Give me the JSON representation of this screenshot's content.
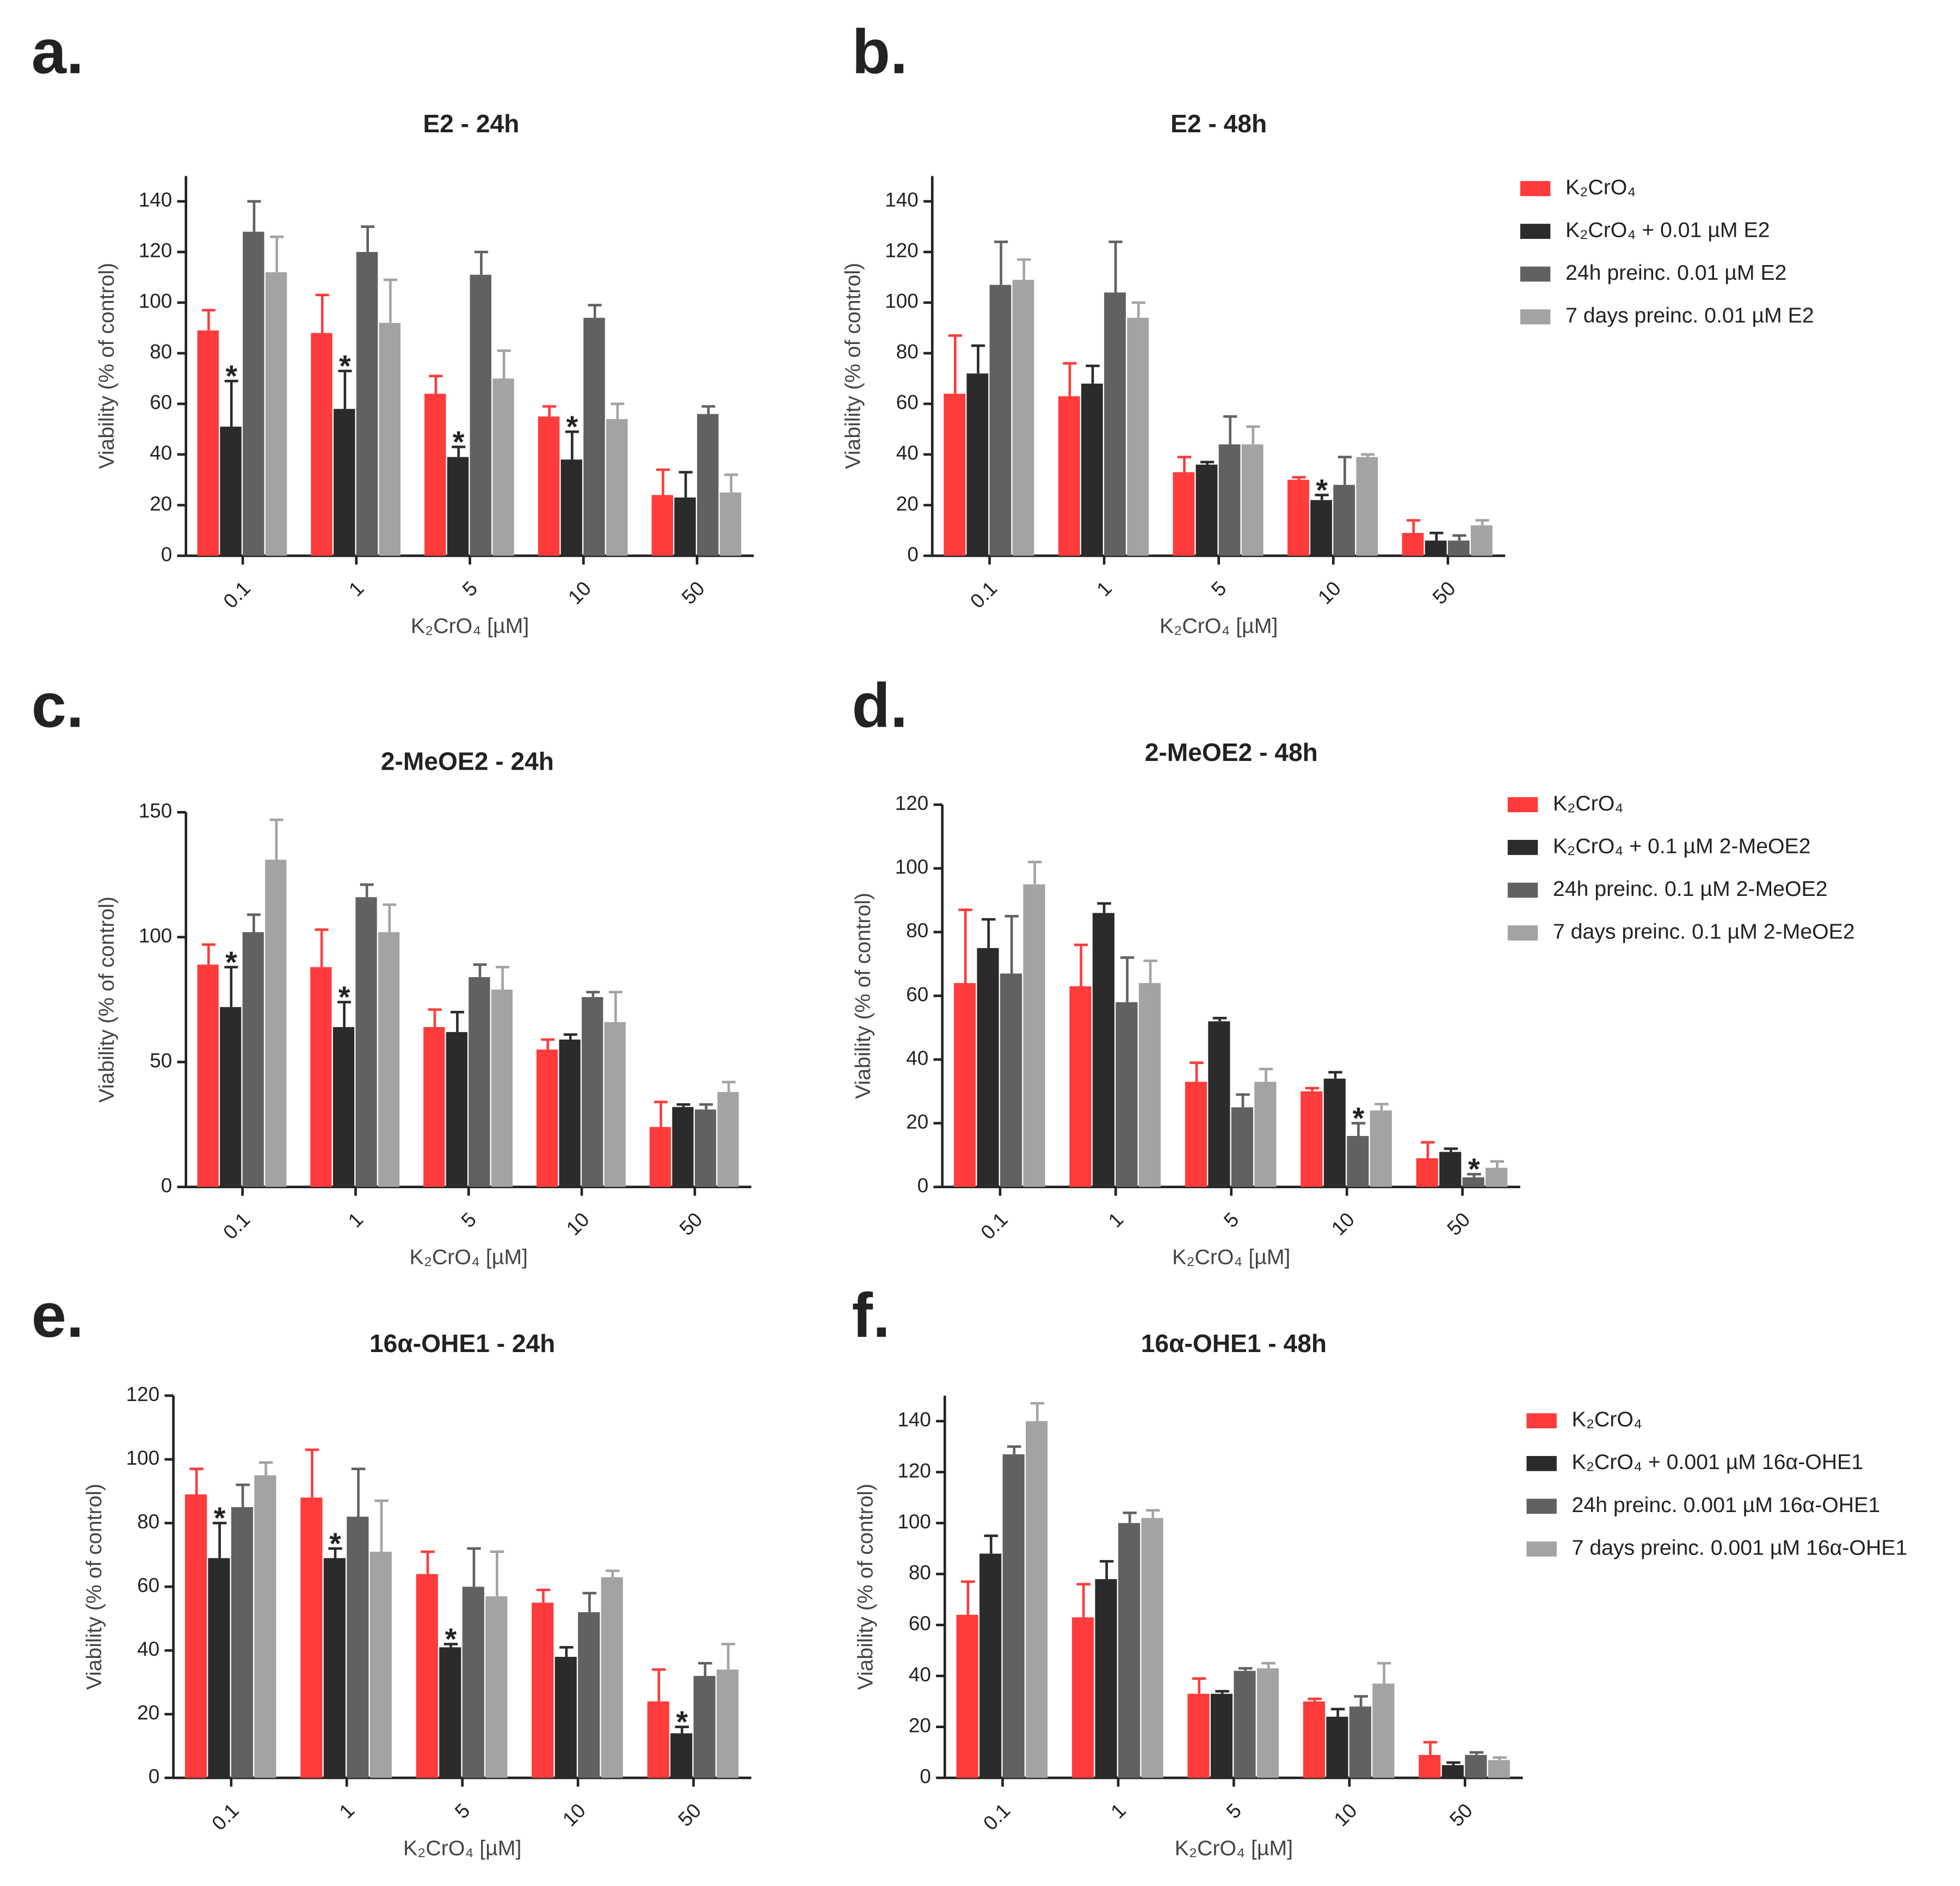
{
  "chart_data": [
    {
      "type": "bar",
      "panel": "a.",
      "title": "E2 - 24h",
      "y_label": "Viability (% of control)",
      "x_label": "K₂CrO₄ [µM]",
      "categories": [
        "0.1",
        "1",
        "5",
        "10",
        "50"
      ],
      "ylim": [
        0,
        150
      ],
      "yticks": [
        0,
        20,
        40,
        60,
        80,
        100,
        120,
        140
      ],
      "series": [
        {
          "color": "#ff3b3b",
          "values": [
            89,
            88,
            64,
            55,
            24
          ],
          "errors": [
            8,
            15,
            7,
            4,
            10
          ],
          "significance": [
            null,
            null,
            null,
            null,
            null
          ]
        },
        {
          "color": "#2b2b2b",
          "values": [
            51,
            58,
            39,
            38,
            23
          ],
          "errors": [
            18,
            15,
            4,
            11,
            10
          ],
          "significance": [
            "*",
            "*",
            "*",
            "*",
            null
          ]
        },
        {
          "color": "#616161",
          "values": [
            128,
            120,
            111,
            94,
            56
          ],
          "errors": [
            12,
            10,
            9,
            5,
            3
          ],
          "significance": [
            null,
            null,
            null,
            null,
            null
          ]
        },
        {
          "color": "#a3a3a3",
          "values": [
            112,
            92,
            70,
            54,
            25
          ],
          "errors": [
            14,
            17,
            11,
            6,
            7
          ],
          "significance": [
            null,
            null,
            null,
            null,
            null
          ]
        }
      ]
    },
    {
      "type": "bar",
      "panel": "b.",
      "title": "E2 - 48h",
      "y_label": "Viability (% of control)",
      "x_label": "K₂CrO₄ [µM]",
      "categories": [
        "0.1",
        "1",
        "5",
        "10",
        "50"
      ],
      "ylim": [
        0,
        150
      ],
      "yticks": [
        0,
        20,
        40,
        60,
        80,
        100,
        120,
        140
      ],
      "series": [
        {
          "name": "K₂CrO₄",
          "color": "#ff3b3b",
          "values": [
            64,
            63,
            33,
            30,
            9
          ],
          "errors": [
            23,
            13,
            6,
            1,
            5
          ],
          "significance": [
            null,
            null,
            null,
            null,
            null
          ]
        },
        {
          "name": "K₂CrO₄ + 0.01 µM E2",
          "color": "#2b2b2b",
          "values": [
            72,
            68,
            36,
            22,
            6
          ],
          "errors": [
            11,
            7,
            1,
            2,
            3
          ],
          "significance": [
            null,
            null,
            null,
            "*",
            null
          ]
        },
        {
          "name": "24h preinc. 0.01 µM E2",
          "color": "#616161",
          "values": [
            107,
            104,
            44,
            28,
            6
          ],
          "errors": [
            17,
            20,
            11,
            11,
            2
          ],
          "significance": [
            null,
            null,
            null,
            null,
            null
          ]
        },
        {
          "name": "7 days preinc. 0.01 µM E2",
          "color": "#a3a3a3",
          "values": [
            109,
            94,
            44,
            39,
            12
          ],
          "errors": [
            8,
            6,
            7,
            1,
            2
          ],
          "significance": [
            null,
            null,
            null,
            null,
            null
          ]
        }
      ]
    },
    {
      "type": "bar",
      "panel": "c.",
      "title": "2-MeOE2 - 24h",
      "y_label": "Viability (% of control)",
      "x_label": "K₂CrO₄ [µM]",
      "categories": [
        "0.1",
        "1",
        "5",
        "10",
        "50"
      ],
      "ylim": [
        0,
        150
      ],
      "yticks": [
        0,
        50,
        100,
        150
      ],
      "series": [
        {
          "color": "#ff3b3b",
          "values": [
            89,
            88,
            64,
            55,
            24
          ],
          "errors": [
            8,
            15,
            7,
            4,
            10
          ],
          "significance": [
            null,
            null,
            null,
            null,
            null
          ]
        },
        {
          "color": "#2b2b2b",
          "values": [
            72,
            64,
            62,
            59,
            32
          ],
          "errors": [
            16,
            10,
            8,
            2,
            1
          ],
          "significance": [
            "*",
            "*",
            null,
            null,
            null
          ]
        },
        {
          "color": "#616161",
          "values": [
            102,
            116,
            84,
            76,
            31
          ],
          "errors": [
            7,
            5,
            5,
            2,
            2
          ],
          "significance": [
            null,
            null,
            null,
            null,
            null
          ]
        },
        {
          "color": "#a3a3a3",
          "values": [
            131,
            102,
            79,
            66,
            38
          ],
          "errors": [
            16,
            11,
            9,
            12,
            4
          ],
          "significance": [
            null,
            null,
            null,
            null,
            null
          ]
        }
      ]
    },
    {
      "type": "bar",
      "panel": "d.",
      "title": "2-MeOE2 - 48h",
      "y_label": "Viability (% of control)",
      "x_label": "K₂CrO₄ [µM]",
      "categories": [
        "0.1",
        "1",
        "5",
        "10",
        "50"
      ],
      "ylim": [
        0,
        120
      ],
      "yticks": [
        0,
        20,
        40,
        60,
        80,
        100,
        120
      ],
      "series": [
        {
          "name": "K₂CrO₄",
          "color": "#ff3b3b",
          "values": [
            64,
            63,
            33,
            30,
            9
          ],
          "errors": [
            23,
            13,
            6,
            1,
            5
          ],
          "significance": [
            null,
            null,
            null,
            null,
            null
          ]
        },
        {
          "name": "K₂CrO₄ + 0.1 µM 2-MeOE2",
          "color": "#2b2b2b",
          "values": [
            75,
            86,
            52,
            34,
            11
          ],
          "errors": [
            9,
            3,
            1,
            2,
            1
          ],
          "significance": [
            null,
            null,
            null,
            null,
            null
          ]
        },
        {
          "name": "24h preinc. 0.1 µM 2-MeOE2",
          "color": "#616161",
          "values": [
            67,
            58,
            25,
            16,
            3
          ],
          "errors": [
            18,
            14,
            4,
            4,
            1
          ],
          "significance": [
            null,
            null,
            null,
            "*",
            "*"
          ]
        },
        {
          "name": "7 days preinc. 0.1 µM 2-MeOE2",
          "color": "#a3a3a3",
          "values": [
            95,
            64,
            33,
            24,
            6
          ],
          "errors": [
            7,
            7,
            4,
            2,
            2
          ],
          "significance": [
            null,
            null,
            null,
            null,
            null
          ]
        }
      ]
    },
    {
      "type": "bar",
      "panel": "e.",
      "title": "16α-OHE1 - 24h",
      "y_label": "Viability (% of control)",
      "x_label": "K₂CrO₄ [µM]",
      "categories": [
        "0.1",
        "1",
        "5",
        "10",
        "50"
      ],
      "ylim": [
        0,
        120
      ],
      "yticks": [
        0,
        20,
        40,
        60,
        80,
        100,
        120
      ],
      "series": [
        {
          "color": "#ff3b3b",
          "values": [
            89,
            88,
            64,
            55,
            24
          ],
          "errors": [
            8,
            15,
            7,
            4,
            10
          ],
          "significance": [
            null,
            null,
            null,
            null,
            null
          ]
        },
        {
          "color": "#2b2b2b",
          "values": [
            69,
            69,
            41,
            38,
            14
          ],
          "errors": [
            11,
            3,
            1,
            3,
            2
          ],
          "significance": [
            "*",
            "*",
            "*",
            null,
            "*"
          ]
        },
        {
          "color": "#616161",
          "values": [
            85,
            82,
            60,
            52,
            32
          ],
          "errors": [
            7,
            15,
            12,
            6,
            4
          ],
          "significance": [
            null,
            null,
            null,
            null,
            null
          ]
        },
        {
          "color": "#a3a3a3",
          "values": [
            95,
            71,
            57,
            63,
            34
          ],
          "errors": [
            4,
            16,
            14,
            2,
            8
          ],
          "significance": [
            null,
            null,
            null,
            null,
            null
          ]
        }
      ]
    },
    {
      "type": "bar",
      "panel": "f.",
      "title": "16α-OHE1 - 48h",
      "y_label": "Viability (% of control)",
      "x_label": "K₂CrO₄ [µM]",
      "categories": [
        "0.1",
        "1",
        "5",
        "10",
        "50"
      ],
      "ylim": [
        0,
        150
      ],
      "yticks": [
        0,
        20,
        40,
        60,
        80,
        100,
        120,
        140
      ],
      "series": [
        {
          "name": "K₂CrO₄",
          "color": "#ff3b3b",
          "values": [
            64,
            63,
            33,
            30,
            9
          ],
          "errors": [
            13,
            13,
            6,
            1,
            5
          ],
          "significance": [
            null,
            null,
            null,
            null,
            null
          ]
        },
        {
          "name": "K₂CrO₄ + 0.001 µM 16α-OHE1",
          "color": "#2b2b2b",
          "values": [
            88,
            78,
            33,
            24,
            5
          ],
          "errors": [
            7,
            7,
            1,
            3,
            1
          ],
          "significance": [
            null,
            null,
            null,
            null,
            null
          ]
        },
        {
          "name": "24h preinc. 0.001 µM 16α-OHE1",
          "color": "#616161",
          "values": [
            127,
            100,
            42,
            28,
            9
          ],
          "errors": [
            3,
            4,
            1,
            4,
            1
          ],
          "significance": [
            null,
            null,
            null,
            null,
            null
          ]
        },
        {
          "name": "7 days preinc. 0.001 µM 16α-OHE1",
          "color": "#a3a3a3",
          "values": [
            140,
            102,
            43,
            37,
            7
          ],
          "errors": [
            7,
            3,
            2,
            8,
            1
          ],
          "significance": [
            null,
            null,
            null,
            null,
            null
          ]
        }
      ]
    }
  ]
}
